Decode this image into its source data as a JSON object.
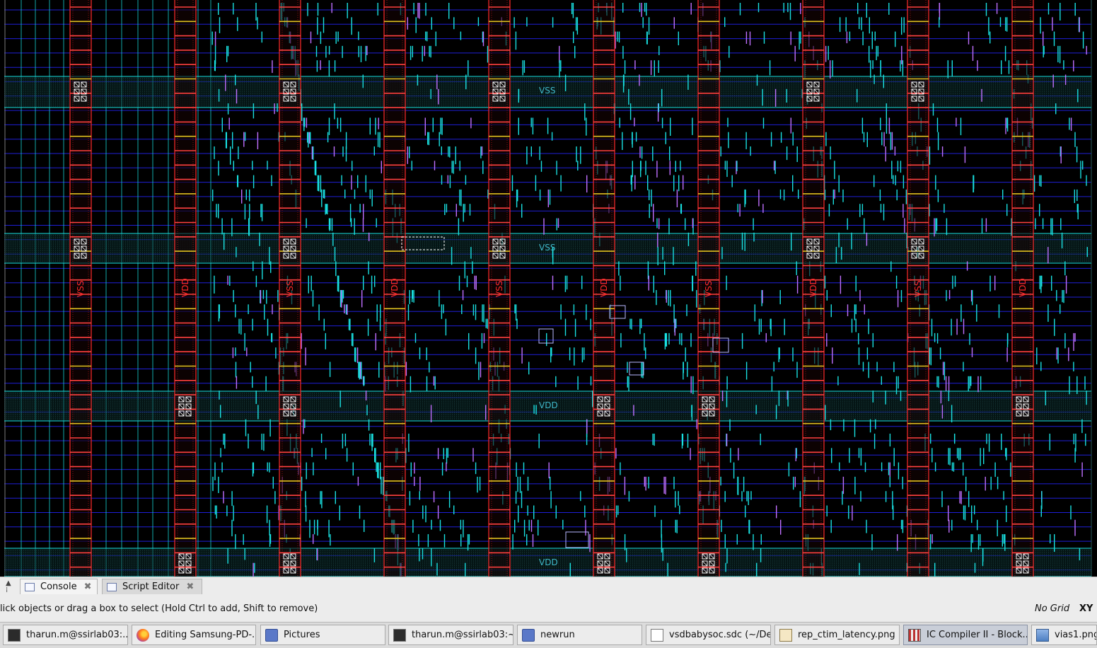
{
  "layout_view": {
    "colors": {
      "background": "#000000",
      "metal_h": "#1f1fd6",
      "metal_v": "#19e0e0",
      "pg_strap": "#ff2a2a",
      "via": "#ffffff",
      "rail_fill": "#0a2a2a"
    },
    "rail_labels": [
      "VSS",
      "VSS",
      "VDD",
      "VDD"
    ],
    "strap_label_vss": "VSS",
    "strap_label_vdd": "VDD"
  },
  "panel_tabs": {
    "console": {
      "label": "Console",
      "icon": "console-icon"
    },
    "script_editor": {
      "label": "Script Editor",
      "icon": "script-editor-icon"
    }
  },
  "status_bar": {
    "message": "lick objects or drag a box to select (Hold Ctrl to add, Shift to remove)",
    "grid": "No Grid",
    "coord_mode": "XY"
  },
  "taskbar": {
    "items": [
      {
        "label": "tharun.m@ssirlab03:...",
        "icon": "terminal-icon"
      },
      {
        "label": "Editing Samsung-PD-...",
        "icon": "firefox-icon"
      },
      {
        "label": "Pictures",
        "icon": "file-manager-icon"
      },
      {
        "label": "tharun.m@ssirlab03:~...",
        "icon": "terminal-icon"
      },
      {
        "label": "newrun",
        "icon": "file-manager-icon"
      },
      {
        "label": "vsdbabysoc.sdc (~/De...",
        "icon": "text-editor-icon"
      },
      {
        "label": "rep_ctim_latency.png",
        "icon": "image-viewer-icon"
      },
      {
        "label": "IC Compiler II - Block...",
        "icon": "ic-compiler-icon"
      },
      {
        "label": "vias1.png -",
        "icon": "image-file-icon"
      }
    ]
  }
}
